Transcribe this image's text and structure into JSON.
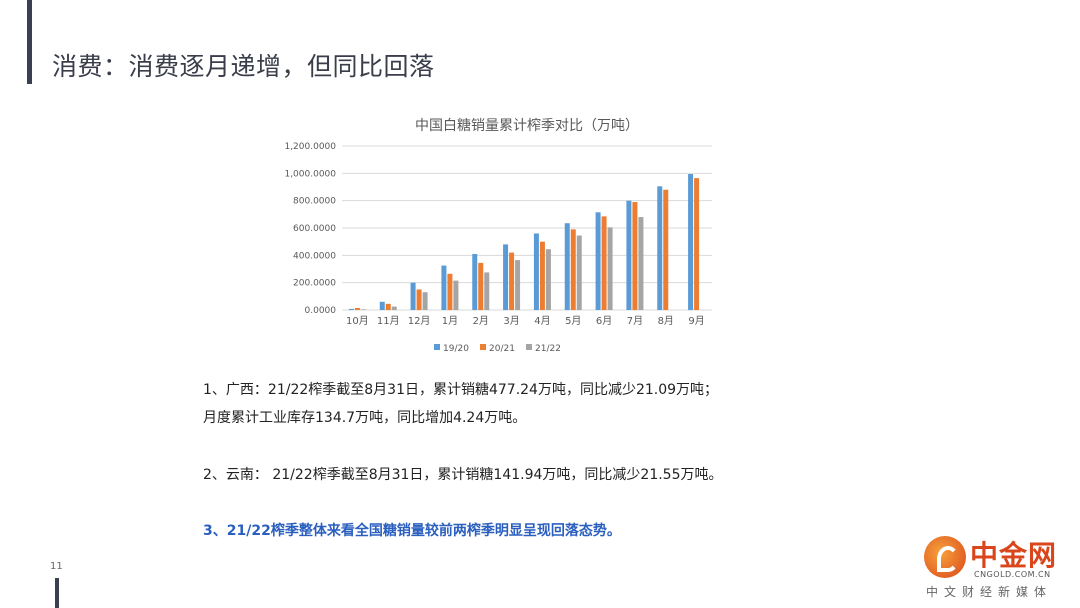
{
  "header": {
    "title": "消费：消费逐月递增，但同比回落"
  },
  "chart_data": {
    "type": "bar",
    "title": "中国白糖销量累计榨季对比（万吨）",
    "categories": [
      "10月",
      "11月",
      "12月",
      "1月",
      "2月",
      "3月",
      "4月",
      "5月",
      "6月",
      "7月",
      "8月",
      "9月"
    ],
    "series": [
      {
        "name": "19/20",
        "color": "#5b9bd5",
        "values": [
          8,
          60,
          200,
          325,
          410,
          480,
          560,
          635,
          715,
          800,
          905,
          995
        ]
      },
      {
        "name": "20/21",
        "color": "#ed7d31",
        "values": [
          15,
          45,
          150,
          265,
          345,
          420,
          500,
          590,
          685,
          790,
          880,
          965
        ]
      },
      {
        "name": "21/22",
        "color": "#a5a5a5",
        "values": [
          5,
          25,
          130,
          215,
          275,
          365,
          445,
          545,
          605,
          680,
          null,
          null
        ]
      }
    ],
    "ylim": [
      0,
      1200
    ],
    "yticks": [
      "0.0000",
      "200.0000",
      "400.0000",
      "600.0000",
      "800.0000",
      "1,000.0000",
      "1,200.0000"
    ],
    "grid": true,
    "legend": "bottom"
  },
  "notes": {
    "line1": "1、广西：21/22榨季截至8月31日，累计销糖477.24万吨，同比减少21.09万吨；",
    "line2": "月度累计工业库存134.7万吨，同比增加4.24万吨。",
    "line3": "2、云南： 21/22榨季截至8月31日，累计销糖141.94万吨，同比减少21.55万吨。",
    "line4": "3、21/22榨季整体来看全国糖销量较前两榨季明显呈现回落态势。"
  },
  "footer": {
    "page_number": "11",
    "logo_name": "中金网",
    "logo_url": "CNGOLD.COM.CN",
    "logo_tagline": "中文财经新媒体"
  }
}
